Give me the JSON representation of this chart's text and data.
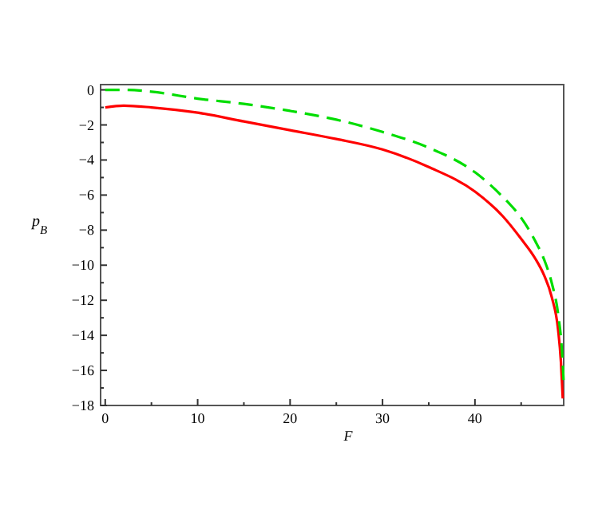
{
  "chart_data": {
    "type": "line",
    "xlabel": "F",
    "ylabel": "p$_{B}$",
    "xlim": [
      -0.5,
      49.6
    ],
    "ylim": [
      -18,
      0.3
    ],
    "xticks": [
      0,
      {
        "value": 5,
        "label": null
      },
      10,
      {
        "value": 15,
        "label": null
      },
      20,
      {
        "value": 25,
        "label": null
      },
      30,
      {
        "value": 35,
        "label": null
      },
      40,
      {
        "value": 45,
        "label": null
      }
    ],
    "yticks": [
      0,
      {
        "value": -1,
        "label": null
      },
      {
        "value": -2,
        "label": "−2"
      },
      {
        "value": -3,
        "label": null
      },
      {
        "value": -4,
        "label": "−4"
      },
      {
        "value": -5,
        "label": null
      },
      {
        "value": -6,
        "label": "−6"
      },
      {
        "value": -7,
        "label": null
      },
      {
        "value": -8,
        "label": "−8"
      },
      {
        "value": -9,
        "label": null
      },
      {
        "value": -10,
        "label": "−10"
      },
      {
        "value": -11,
        "label": null
      },
      {
        "value": -12,
        "label": "−12"
      },
      {
        "value": -13,
        "label": null
      },
      {
        "value": -14,
        "label": "−14"
      },
      {
        "value": -15,
        "label": null
      },
      {
        "value": -16,
        "label": "−16"
      },
      {
        "value": -17,
        "label": null
      },
      {
        "value": -18,
        "label": "−18"
      }
    ],
    "marker": "none",
    "series": [
      {
        "color": "#ff0000",
        "line_style": "solid",
        "x": [
          0,
          2,
          5,
          10,
          15,
          20,
          25,
          30,
          35,
          40,
          43,
          45,
          46.5,
          47.5,
          48.3,
          49,
          49.3,
          49.5
        ],
        "values": [
          -1,
          -0.9,
          -1,
          -1.3,
          -1.8,
          -2.3,
          -2.8,
          -3.4,
          -4.4,
          -5.8,
          -7.2,
          -8.5,
          -9.6,
          -10.6,
          -11.8,
          -13.7,
          -15.5,
          -17.6
        ]
      },
      {
        "color": "#00dd00",
        "line_style": "dashed",
        "x": [
          0,
          2,
          5,
          10,
          15,
          20,
          25,
          30,
          35,
          40,
          43,
          45,
          46.5,
          47.5,
          48.3,
          49,
          49.4,
          49.6
        ],
        "values": [
          0,
          0,
          -0.1,
          -0.5,
          -0.8,
          -1.2,
          -1.7,
          -2.4,
          -3.3,
          -4.7,
          -6.1,
          -7.3,
          -8.6,
          -9.7,
          -11,
          -12.8,
          -14.8,
          -16.7
        ]
      }
    ]
  }
}
